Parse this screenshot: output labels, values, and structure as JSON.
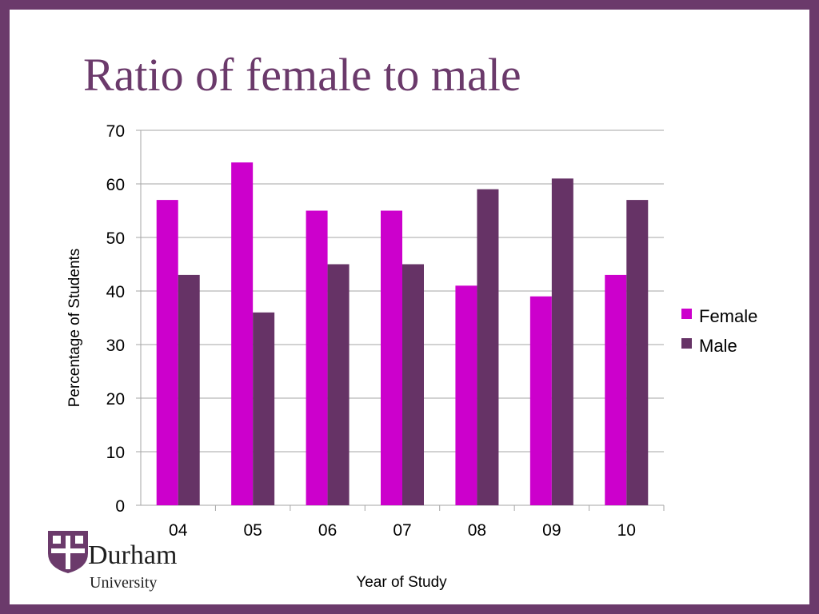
{
  "slide": {
    "title": "Ratio of female to male",
    "logo": {
      "name": "Durham",
      "sub": "University"
    }
  },
  "colors": {
    "frame": "#6b3a6b",
    "female": "#cc00cc",
    "male": "#663366",
    "grid": "#a6a6a6"
  },
  "chart_data": {
    "type": "bar",
    "categories": [
      "04",
      "05",
      "06",
      "07",
      "08",
      "09",
      "10"
    ],
    "series": [
      {
        "name": "Female",
        "values": [
          57,
          64,
          55,
          55,
          41,
          39,
          43
        ]
      },
      {
        "name": "Male",
        "values": [
          43,
          36,
          45,
          45,
          59,
          61,
          57
        ]
      }
    ],
    "xlabel": "Year of Study",
    "ylabel": "Percentage of Students",
    "ylim": [
      0,
      70
    ],
    "yticks": [
      0,
      10,
      20,
      30,
      40,
      50,
      60,
      70
    ],
    "grid": true,
    "legend": "right"
  }
}
